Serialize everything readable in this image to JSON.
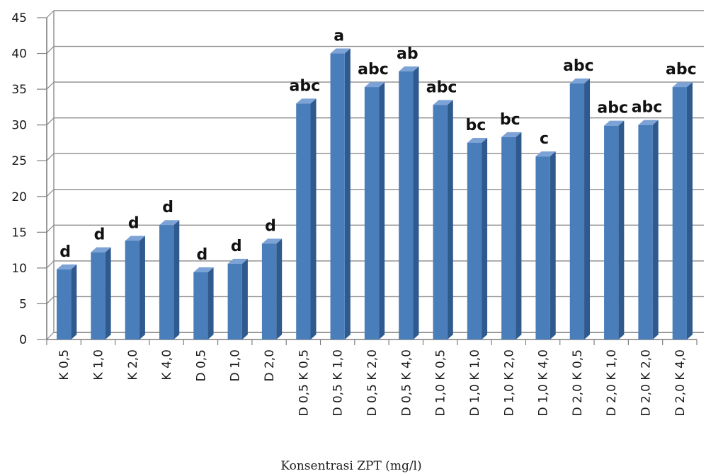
{
  "chart_data": {
    "type": "bar",
    "title": "",
    "xlabel": "Konsentrasi ZPT (mg/l)",
    "ylabel": "",
    "ylim": [
      0,
      45
    ],
    "yticks": [
      0,
      5,
      10,
      15,
      20,
      25,
      30,
      35,
      40,
      45
    ],
    "grid": true,
    "legend": "none",
    "categories": [
      "K 0,5",
      "K 1,0",
      "K 2,0",
      "K 4,0",
      "D 0,5",
      "D 1,0",
      "D 2,0",
      "D 0,5 K 0,5",
      "D 0,5 K 1,0",
      "D 0,5 K 2,0",
      "D 0,5 K 4,0",
      "D 1,0 K 0,5",
      "D 1,0 K 1,0",
      "D 1,0 K 2,0",
      "D 1,0 K 4,0",
      "D 2,0 K 0,5",
      "D 2,0 K 1,0",
      "D 2,0 K 2,0",
      "D 2,0 K 4,0"
    ],
    "values": [
      9.8,
      12.2,
      13.8,
      16.0,
      9.4,
      10.6,
      13.4,
      33.0,
      40.0,
      35.3,
      37.5,
      32.8,
      27.5,
      28.3,
      25.6,
      35.8,
      29.9,
      30.0,
      35.3
    ],
    "labels": [
      "d",
      "d",
      "d",
      "d",
      "d",
      "d",
      "d",
      "abc",
      "a",
      "abc",
      "ab",
      "abc",
      "bc",
      "bc",
      "c",
      "abc",
      "abc",
      "abc",
      "abc"
    ],
    "colors": {
      "bar_front": "#4a7ebb",
      "bar_side": "#2f5a8e",
      "bar_top": "#7da3d6",
      "grid": "#8c8c8c",
      "axis": "#7f7f7f"
    }
  }
}
